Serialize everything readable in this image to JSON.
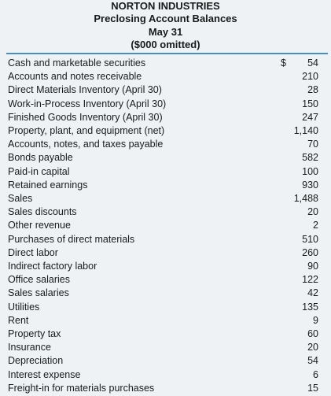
{
  "header": {
    "title": "NORTON INDUSTRIES",
    "subtitle": "Preclosing Account Balances",
    "date": "May 31",
    "note": "($000 omitted)"
  },
  "table": {
    "currency": "$",
    "rows": [
      [
        "Cash and marketable securities",
        "54"
      ],
      [
        "Accounts and notes receivable",
        "210"
      ],
      [
        "Direct Materials Inventory (April 30)",
        "28"
      ],
      [
        "Work-in-Process Inventory (April 30)",
        "150"
      ],
      [
        "Finished Goods Inventory (April 30)",
        "247"
      ],
      [
        "Property, plant, and equipment (net)",
        "1,140"
      ],
      [
        "Accounts, notes, and taxes payable",
        "70"
      ],
      [
        "Bonds payable",
        "582"
      ],
      [
        "Paid-in capital",
        "100"
      ],
      [
        "Retained earnings",
        "930"
      ],
      [
        "Sales",
        "1,488"
      ],
      [
        "Sales discounts",
        "20"
      ],
      [
        "Other revenue",
        "2"
      ],
      [
        "Purchases of direct materials",
        "510"
      ],
      [
        "Direct labor",
        "260"
      ],
      [
        "Indirect factory labor",
        "90"
      ],
      [
        "Office salaries",
        "122"
      ],
      [
        "Sales salaries",
        "42"
      ],
      [
        "Utilities",
        "135"
      ],
      [
        "Rent",
        "9"
      ],
      [
        "Property tax",
        "60"
      ],
      [
        "Insurance",
        "20"
      ],
      [
        "Depreciation",
        "54"
      ],
      [
        "Interest expense",
        "6"
      ],
      [
        "Freight-in for materials purchases",
        "15"
      ]
    ]
  }
}
